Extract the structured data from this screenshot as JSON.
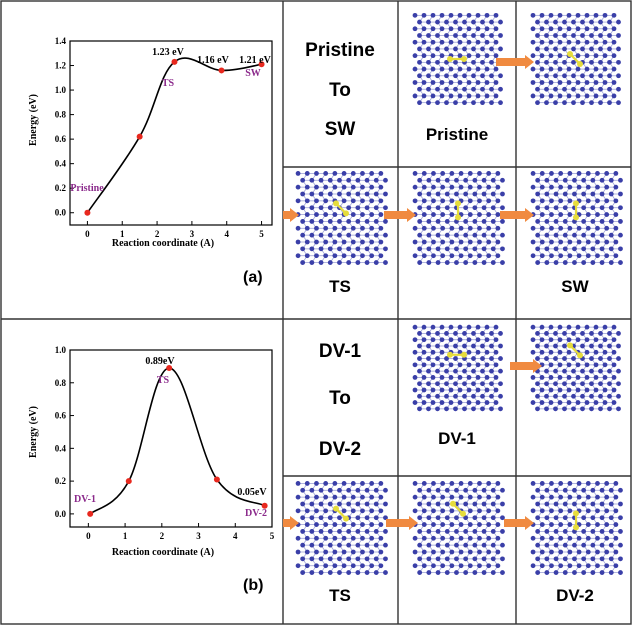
{
  "chart_data": [
    {
      "type": "line",
      "panel_label": "(a)",
      "xlabel": "Reaction coordinate (A)",
      "ylabel": "Energy (eV)",
      "xlim": [
        -0.5,
        5.3
      ],
      "ylim": [
        -0.1,
        1.4
      ],
      "xticks": [
        "0",
        "1",
        "2",
        "3",
        "4",
        "5"
      ],
      "yticks": [
        "0.0",
        "0.2",
        "0.4",
        "0.6",
        "0.8",
        "1.0",
        "1.2",
        "1.4"
      ],
      "points": [
        {
          "x": 0,
          "y": 0.0
        },
        {
          "x": 1.5,
          "y": 0.62
        },
        {
          "x": 2.5,
          "y": 1.23
        },
        {
          "x": 3.85,
          "y": 1.16
        },
        {
          "x": 5.0,
          "y": 1.21
        }
      ],
      "value_labels": [
        "1.23 eV",
        "1.16 eV",
        "1.21 eV"
      ],
      "state_labels": [
        "Pristine",
        "TS",
        "SW"
      ]
    },
    {
      "type": "line",
      "panel_label": "(b)",
      "xlabel": "Reaction coordinate (A)",
      "ylabel": "Energy (eV)",
      "xlim": [
        -0.5,
        5.0
      ],
      "ylim": [
        -0.08,
        1.0
      ],
      "xticks": [
        "0",
        "1",
        "2",
        "3",
        "4",
        "5"
      ],
      "yticks": [
        "0.0",
        "0.2",
        "0.4",
        "0.6",
        "0.8",
        "1.0"
      ],
      "points": [
        {
          "x": 0.05,
          "y": 0.0
        },
        {
          "x": 1.1,
          "y": 0.2
        },
        {
          "x": 2.2,
          "y": 0.89
        },
        {
          "x": 3.5,
          "y": 0.21
        },
        {
          "x": 4.8,
          "y": 0.05
        }
      ],
      "value_labels": [
        "0.89eV",
        "0.05eV"
      ],
      "state_labels": [
        "DV-1",
        "TS",
        "DV-2"
      ]
    }
  ],
  "panels": {
    "a_title_lines": [
      "Pristine",
      "To",
      "SW"
    ],
    "a_pristine_label": "Pristine",
    "a_ts_label": "TS",
    "a_sw_label": "SW",
    "b_title_lines": [
      "DV-1",
      "To",
      "DV-2"
    ],
    "b_dv1_label": "DV-1",
    "b_ts_label": "TS",
    "b_dv2_label": "DV-2"
  },
  "colors": {
    "atom": "#3a3fa8",
    "defect_atom": "#e6dc3c",
    "arrow": "#f08a40",
    "data_point": "#e8281e",
    "state_label": "#8b2a8b",
    "grid_line": "#333333"
  }
}
